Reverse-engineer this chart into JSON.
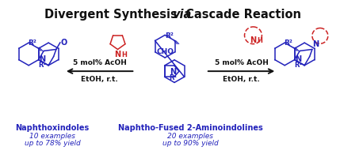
{
  "title_parts": [
    "Divergent Synthesis ",
    "via",
    " Cascade Reaction"
  ],
  "title_italic_idx": 1,
  "bg_color": "#ffffff",
  "blue": "#2222bb",
  "red": "#cc2222",
  "black": "#111111",
  "label1_bold": "Naphthoxindoles",
  "label1_line2": "10 examples",
  "label1_line3": "up to 78% yield",
  "label2_bold": "Naphtho-Fused 2-Aminoindolines",
  "label2_line2": "20 examples",
  "label2_line3": "up to 90% yield",
  "arrow1_text1": "5 mol% AcOH",
  "arrow1_text2": "EtOH, r.t.",
  "arrow2_text1": "5 mol% AcOH",
  "arrow2_text2": "EtOH, r.t.",
  "lw": 1.1
}
